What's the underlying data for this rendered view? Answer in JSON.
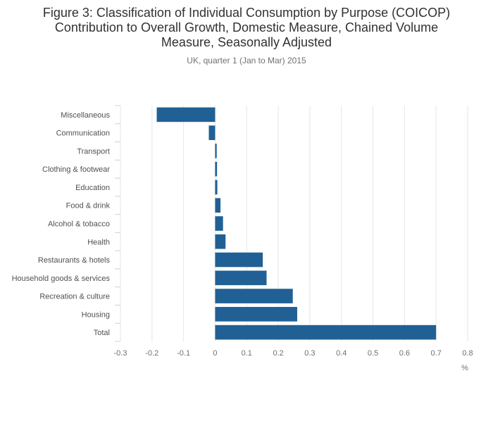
{
  "title_lines": [
    "Figure 3: Classification of Individual Consumption by Purpose (COICOP)",
    "Contribution to Overall Growth, Domestic Measure, Chained Volume",
    "Measure, Seasonally Adjusted"
  ],
  "subtitle": "UK, quarter 1 (Jan to Mar) 2015",
  "chart_data": {
    "type": "bar",
    "orientation": "horizontal",
    "categories": [
      "Miscellaneous",
      "Communication",
      "Transport",
      "Clothing & footwear",
      "Education",
      "Food & drink",
      "Alcohol & tobacco",
      "Health",
      "Restaurants & hotels",
      "Household goods & services",
      "Recreation & culture",
      "Housing",
      "Total"
    ],
    "values": [
      -0.185,
      -0.02,
      0.005,
      0.006,
      0.007,
      0.017,
      0.025,
      0.033,
      0.151,
      0.163,
      0.246,
      0.26,
      0.7
    ],
    "xlim": [
      -0.3,
      0.8
    ],
    "xticks": [
      -0.3,
      -0.2,
      -0.1,
      0,
      0.1,
      0.2,
      0.3,
      0.4,
      0.5,
      0.6,
      0.7,
      0.8
    ],
    "xtick_labels": [
      "-0.3",
      "-0.2",
      "-0.1",
      "0",
      "0.1",
      "0.2",
      "0.3",
      "0.4",
      "0.5",
      "0.6",
      "0.7",
      "0.8"
    ],
    "xlabel": "%",
    "ylabel": "",
    "grid": true,
    "bar_color": "#206095",
    "grid_color": "#e6e6e6"
  }
}
